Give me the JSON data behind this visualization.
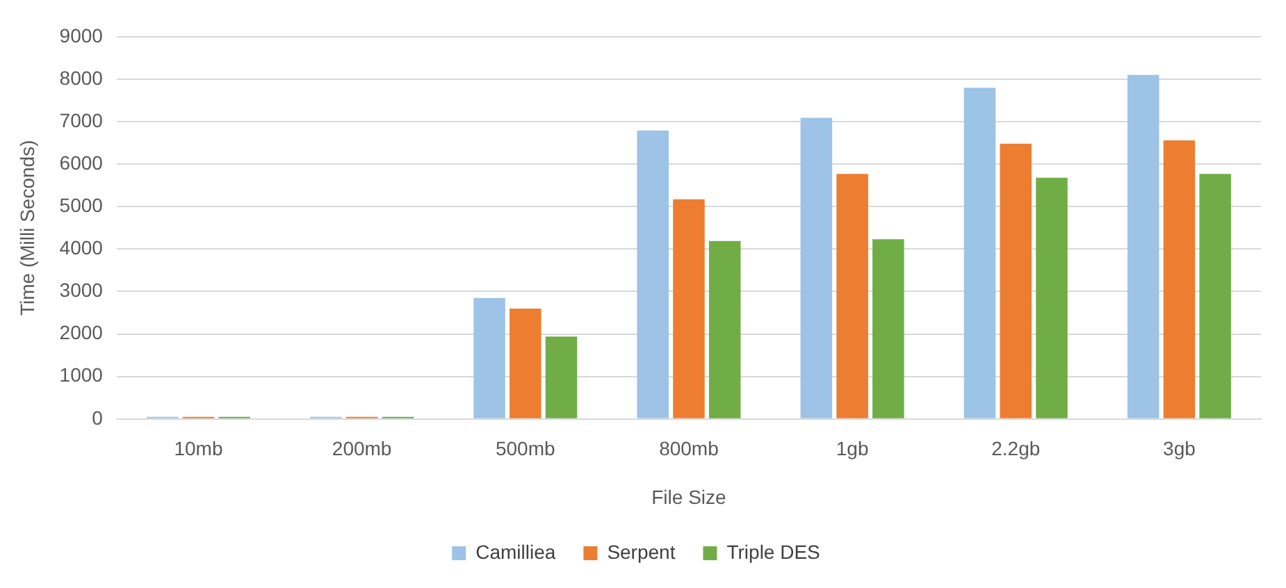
{
  "chart_data": {
    "type": "bar",
    "xlabel": "File Size",
    "ylabel": "Time (Milli Seconds)",
    "categories": [
      "10mb",
      "200mb",
      "500mb",
      "800mb",
      "1gb",
      "2.2gb",
      "3gb"
    ],
    "series": [
      {
        "name": "Camilliea",
        "color": "#9dc3e6",
        "values": [
          50,
          50,
          2850,
          6790,
          7090,
          7800,
          8100
        ]
      },
      {
        "name": "Serpent",
        "color": "#ed7d31",
        "values": [
          50,
          50,
          2600,
          5170,
          5770,
          6480,
          6560
        ]
      },
      {
        "name": "Triple DES",
        "color": "#70ad47",
        "values": [
          50,
          50,
          1940,
          4190,
          4230,
          5680,
          5770
        ]
      }
    ],
    "ylim": [
      0,
      9000
    ],
    "yticks": [
      0,
      1000,
      2000,
      3000,
      4000,
      5000,
      6000,
      7000,
      8000,
      9000
    ],
    "grid": "y",
    "legend": "bottom"
  }
}
